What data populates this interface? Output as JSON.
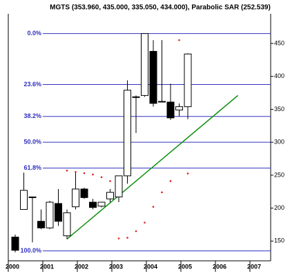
{
  "chart_data": {
    "type": "candlestick",
    "title": "MGTS (353.960, 435.000, 335.050, 434.000), Parabolic SAR (252.539)",
    "open": [
      156,
      198,
      217,
      180,
      170,
      207,
      158,
      202,
      229,
      209,
      203,
      214,
      217,
      249,
      369,
      371,
      438,
      362,
      361,
      349,
      353.96
    ],
    "high": [
      160,
      254,
      217,
      198,
      211,
      229,
      198,
      254,
      231,
      214,
      209,
      229,
      249,
      394,
      371,
      465,
      455,
      455,
      389,
      359,
      435
    ],
    "low": [
      133,
      198,
      148,
      168,
      168,
      173,
      153,
      198,
      214,
      198,
      201,
      209,
      209,
      237,
      314,
      369,
      354,
      362,
      334,
      339,
      335.05
    ],
    "close": [
      136,
      227,
      217,
      170,
      209,
      180,
      193,
      229,
      216,
      201,
      209,
      224,
      249,
      379,
      369,
      465,
      359,
      362,
      337,
      354,
      434
    ],
    "up_color": "#ffffff",
    "down_color": "#000000",
    "sar": {
      "color": "#e02020",
      "values": [
        null,
        null,
        null,
        null,
        null,
        null,
        257,
        255,
        253,
        251,
        247,
        241,
        154,
        155,
        165,
        178,
        202,
        224,
        241,
        455,
        252.539
      ]
    },
    "trendline": {
      "color": "#109010",
      "x": [
        6,
        25.8
      ],
      "values": [
        153,
        371
      ]
    },
    "fib_levels": [
      {
        "label": "0.0%",
        "value": 465
      },
      {
        "label": "23.6%",
        "value": 387.6
      },
      {
        "label": "38.2%",
        "value": 339.2
      },
      {
        "label": "50.0%",
        "value": 300
      },
      {
        "label": "61.8%",
        "value": 260.8
      },
      {
        "label": "100.0%",
        "value": 135
      }
    ],
    "fib_color": "#3030c0",
    "years": [
      "2000",
      "2001",
      "2002",
      "2003",
      "2004",
      "2005",
      "2006",
      "2007"
    ],
    "ylim": [
      120,
      495
    ],
    "yticks": [
      150,
      200,
      250,
      300,
      350,
      400,
      450
    ]
  }
}
